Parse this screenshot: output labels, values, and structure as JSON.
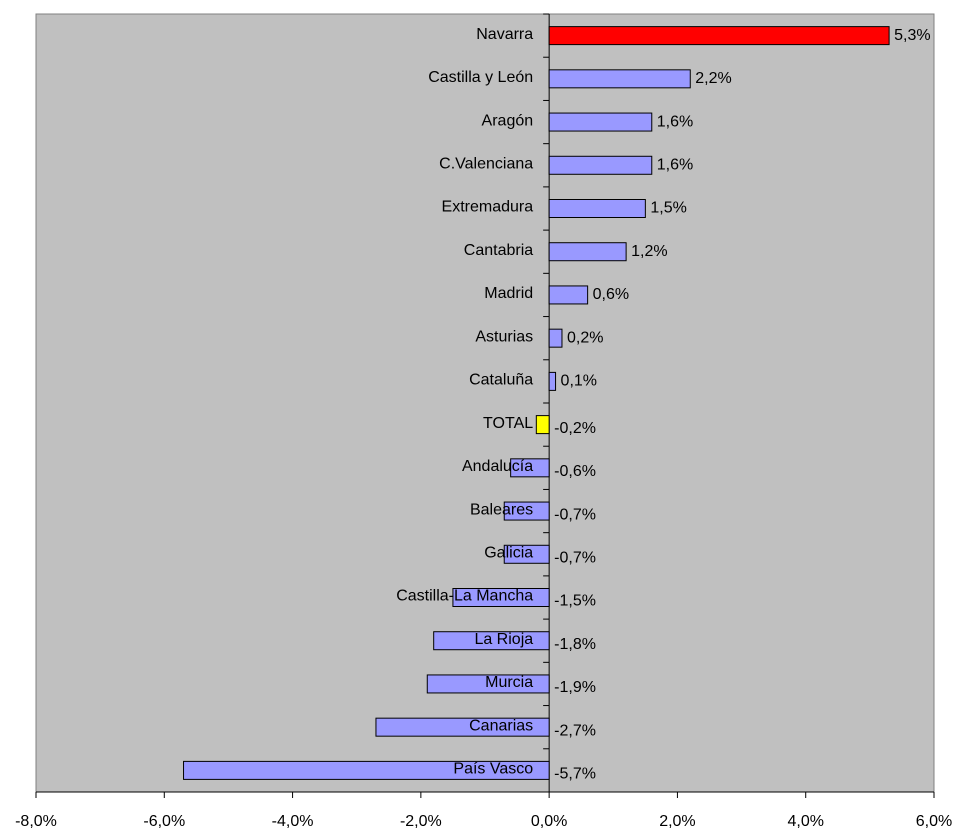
{
  "chart_data": {
    "type": "barh",
    "categories": [
      "Navarra",
      "Castilla y León",
      "Aragón",
      "C.Valenciana",
      "Extremadura",
      "Cantabria",
      "Madrid",
      "Asturias",
      "Cataluña",
      "TOTAL",
      "Andalucía",
      "Baleares",
      "Galicia",
      "Castilla-La Mancha",
      "La Rioja",
      "Murcia",
      "Canarias",
      "País Vasco"
    ],
    "values": [
      5.3,
      2.2,
      1.6,
      1.6,
      1.5,
      1.2,
      0.6,
      0.2,
      0.1,
      -0.2,
      -0.6,
      -0.7,
      -0.7,
      -1.5,
      -1.8,
      -1.9,
      -2.7,
      -5.7
    ],
    "value_labels": [
      "5,3%",
      "2,2%",
      "1,6%",
      "1,6%",
      "1,5%",
      "1,2%",
      "0,6%",
      "0,2%",
      "0,1%",
      "-0,2%",
      "-0,6%",
      "-0,7%",
      "-0,7%",
      "-1,5%",
      "-1,8%",
      "-1,9%",
      "-2,7%",
      "-5,7%"
    ],
    "colors": [
      "#ff0000",
      "#9999ff",
      "#9999ff",
      "#9999ff",
      "#9999ff",
      "#9999ff",
      "#9999ff",
      "#9999ff",
      "#9999ff",
      "#ffff00",
      "#9999ff",
      "#9999ff",
      "#9999ff",
      "#9999ff",
      "#9999ff",
      "#9999ff",
      "#9999ff",
      "#9999ff"
    ],
    "xlim": [
      -8,
      6
    ],
    "xticks": [
      {
        "value": -8,
        "label": "-8,0%"
      },
      {
        "value": -6,
        "label": "-6,0%"
      },
      {
        "value": -4,
        "label": "-4,0%"
      },
      {
        "value": -2,
        "label": "-2,0%"
      },
      {
        "value": 0,
        "label": "0,0%"
      },
      {
        "value": 2,
        "label": "2,0%"
      },
      {
        "value": 4,
        "label": "4,0%"
      },
      {
        "value": 6,
        "label": "6,0%"
      }
    ],
    "background": "#c0c0c0"
  }
}
